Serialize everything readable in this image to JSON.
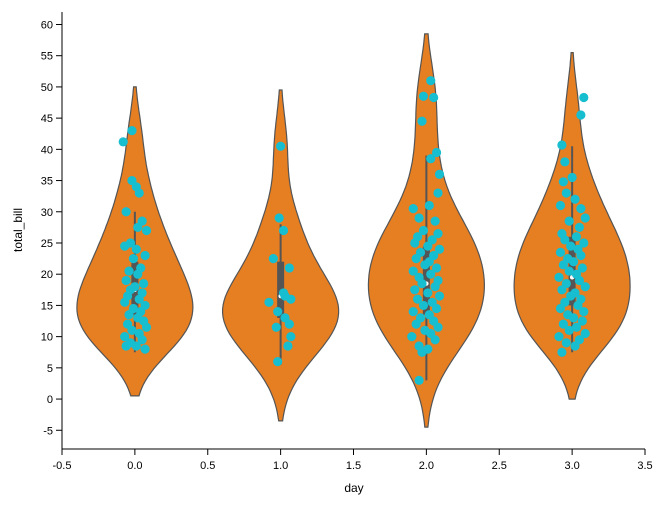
{
  "chart_data": {
    "type": "violin",
    "xlabel": "day",
    "ylabel": "total_bill",
    "xlim": [
      -0.5,
      3.5
    ],
    "ylim": [
      -8,
      62
    ],
    "x_ticks": [
      "-0.5",
      "0.0",
      "0.5",
      "1.0",
      "1.5",
      "2.0",
      "2.5",
      "3.0",
      "3.5"
    ],
    "y_ticks": [
      "-5",
      "0",
      "5",
      "10",
      "15",
      "20",
      "25",
      "30",
      "35",
      "40",
      "45",
      "50",
      "55",
      "60"
    ],
    "grid": false,
    "colors": {
      "violin": "#e67e22",
      "violin_stroke": "#555555",
      "points": "#17becf",
      "box": "#555555"
    },
    "violins": [
      {
        "x": 0,
        "range": [
          0.5,
          50
        ],
        "box": {
          "q1": 13.5,
          "median": 17.5,
          "q3": 22
        },
        "whisker": [
          7.5,
          30
        ],
        "points": [
          [
            -0.08,
            41.2
          ],
          [
            -0.02,
            43.0
          ],
          [
            -0.02,
            35.0
          ],
          [
            0.01,
            34.0
          ],
          [
            0.03,
            33.0
          ],
          [
            -0.06,
            30.0
          ],
          [
            0.05,
            28.5
          ],
          [
            0.02,
            27.5
          ],
          [
            0.08,
            27.0
          ],
          [
            -0.03,
            25.0
          ],
          [
            -0.07,
            24.5
          ],
          [
            0.01,
            24.0
          ],
          [
            0.07,
            23.0
          ],
          [
            -0.01,
            22.5
          ],
          [
            0.04,
            21.0
          ],
          [
            -0.04,
            20.5
          ],
          [
            0.02,
            20.0
          ],
          [
            -0.06,
            19.0
          ],
          [
            0.06,
            18.5
          ],
          [
            0.0,
            18.0
          ],
          [
            -0.03,
            17.5
          ],
          [
            0.05,
            17.0
          ],
          [
            -0.05,
            16.5
          ],
          [
            0.03,
            16.0
          ],
          [
            -0.07,
            15.5
          ],
          [
            0.07,
            15.0
          ],
          [
            -0.01,
            14.5
          ],
          [
            0.04,
            14.0
          ],
          [
            -0.04,
            13.5
          ],
          [
            0.02,
            13.0
          ],
          [
            0.06,
            12.5
          ],
          [
            -0.05,
            12.0
          ],
          [
            0.08,
            11.5
          ],
          [
            -0.02,
            11.0
          ],
          [
            0.03,
            10.5
          ],
          [
            -0.07,
            10.0
          ],
          [
            0.05,
            9.5
          ],
          [
            -0.03,
            9.0
          ],
          [
            0.01,
            8.5
          ],
          [
            -0.06,
            8.5
          ],
          [
            0.07,
            8.0
          ]
        ]
      },
      {
        "x": 1,
        "range": [
          -3.5,
          49.5
        ],
        "box": {
          "q1": 13,
          "median": 16.5,
          "q3": 22
        },
        "whisker": [
          5.5,
          28
        ],
        "points": [
          [
            0.0,
            40.5
          ],
          [
            -0.01,
            29.0
          ],
          [
            0.02,
            27.0
          ],
          [
            -0.05,
            22.5
          ],
          [
            0.06,
            21.0
          ],
          [
            0.02,
            17.0
          ],
          [
            0.03,
            16.5
          ],
          [
            -0.08,
            15.5
          ],
          [
            0.07,
            16.0
          ],
          [
            -0.02,
            14.0
          ],
          [
            0.03,
            13.0
          ],
          [
            0.06,
            12.0
          ],
          [
            -0.03,
            11.5
          ],
          [
            0.07,
            10.0
          ],
          [
            0.05,
            8.5
          ],
          [
            -0.02,
            6.0
          ]
        ]
      },
      {
        "x": 2,
        "range": [
          -4.5,
          58.5
        ],
        "box": {
          "q1": 13.5,
          "median": 18.5,
          "q3": 24.5
        },
        "whisker": [
          3,
          39
        ],
        "points": [
          [
            0.03,
            51.0
          ],
          [
            -0.02,
            48.5
          ],
          [
            0.05,
            48.3
          ],
          [
            -0.03,
            44.5
          ],
          [
            0.07,
            39.5
          ],
          [
            0.03,
            38.5
          ],
          [
            0.09,
            36.0
          ],
          [
            0.08,
            33.0
          ],
          [
            -0.09,
            30.5
          ],
          [
            0.02,
            31.0
          ],
          [
            -0.05,
            29.0
          ],
          [
            0.06,
            28.5
          ],
          [
            -0.02,
            27.0
          ],
          [
            0.08,
            26.5
          ],
          [
            -0.06,
            26.0
          ],
          [
            0.04,
            25.5
          ],
          [
            -0.08,
            25.0
          ],
          [
            0.01,
            24.5
          ],
          [
            0.09,
            24.0
          ],
          [
            -0.04,
            23.5
          ],
          [
            0.05,
            23.0
          ],
          [
            -0.07,
            22.5
          ],
          [
            0.02,
            22.0
          ],
          [
            -0.01,
            21.5
          ],
          [
            0.07,
            21.0
          ],
          [
            -0.09,
            20.5
          ],
          [
            0.03,
            20.0
          ],
          [
            -0.05,
            19.5
          ],
          [
            0.08,
            19.0
          ],
          [
            -0.03,
            18.5
          ],
          [
            0.06,
            18.0
          ],
          [
            -0.08,
            17.5
          ],
          [
            0.01,
            17.0
          ],
          [
            0.09,
            16.5
          ],
          [
            -0.06,
            16.0
          ],
          [
            0.04,
            15.5
          ],
          [
            -0.02,
            15.0
          ],
          [
            0.07,
            14.5
          ],
          [
            -0.09,
            14.0
          ],
          [
            0.02,
            13.5
          ],
          [
            -0.04,
            13.0
          ],
          [
            0.05,
            12.5
          ],
          [
            -0.07,
            12.0
          ],
          [
            0.08,
            11.5
          ],
          [
            -0.01,
            11.0
          ],
          [
            0.03,
            10.5
          ],
          [
            -0.1,
            10.0
          ],
          [
            0.06,
            9.5
          ],
          [
            -0.05,
            8.5
          ],
          [
            0.01,
            8.0
          ],
          [
            -0.03,
            7.5
          ],
          [
            -0.05,
            3.0
          ]
        ]
      },
      {
        "x": 3,
        "range": [
          0,
          55.5
        ],
        "box": {
          "q1": 15,
          "median": 19.5,
          "q3": 26
        },
        "whisker": [
          7.5,
          40.5
        ],
        "points": [
          [
            0.08,
            48.3
          ],
          [
            0.06,
            45.5
          ],
          [
            -0.07,
            40.7
          ],
          [
            -0.05,
            38.0
          ],
          [
            0.0,
            35.5
          ],
          [
            -0.06,
            34.8
          ],
          [
            -0.04,
            33.0
          ],
          [
            0.02,
            32.0
          ],
          [
            -0.08,
            31.0
          ],
          [
            0.06,
            30.5
          ],
          [
            0.09,
            29.0
          ],
          [
            -0.02,
            28.5
          ],
          [
            0.05,
            27.5
          ],
          [
            -0.07,
            26.5
          ],
          [
            0.03,
            26.0
          ],
          [
            -0.05,
            25.5
          ],
          [
            0.08,
            25.0
          ],
          [
            -0.01,
            24.5
          ],
          [
            0.04,
            24.0
          ],
          [
            -0.08,
            23.5
          ],
          [
            0.06,
            23.0
          ],
          [
            -0.03,
            22.5
          ],
          [
            0.01,
            22.0
          ],
          [
            -0.06,
            21.5
          ],
          [
            0.07,
            21.0
          ],
          [
            -0.02,
            20.5
          ],
          [
            0.03,
            20.0
          ],
          [
            -0.09,
            19.5
          ],
          [
            0.05,
            19.0
          ],
          [
            -0.04,
            18.5
          ],
          [
            0.09,
            18.0
          ],
          [
            -0.07,
            17.5
          ],
          [
            0.02,
            17.0
          ],
          [
            -0.01,
            16.5
          ],
          [
            0.06,
            16.0
          ],
          [
            -0.05,
            15.5
          ],
          [
            0.04,
            15.0
          ],
          [
            -0.08,
            14.5
          ],
          [
            0.08,
            14.0
          ],
          [
            -0.03,
            13.5
          ],
          [
            0.01,
            13.0
          ],
          [
            0.07,
            12.5
          ],
          [
            -0.06,
            12.0
          ],
          [
            0.03,
            11.5
          ],
          [
            -0.02,
            11.0
          ],
          [
            0.09,
            10.5
          ],
          [
            -0.09,
            10.0
          ],
          [
            0.05,
            9.5
          ],
          [
            -0.04,
            9.0
          ],
          [
            0.02,
            8.5
          ],
          [
            -0.07,
            7.5
          ]
        ]
      }
    ]
  }
}
